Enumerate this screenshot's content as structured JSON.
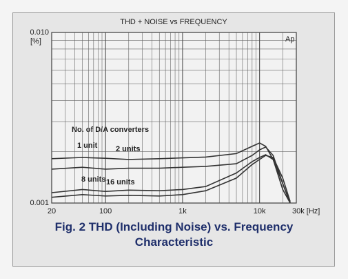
{
  "chart_data": {
    "type": "line",
    "title": "THD + NOISE vs FREQUENCY",
    "y_label": "[%]",
    "annotation": "Ap",
    "legend_title": "No. of D/A converters",
    "caption": "Fig. 2  THD (Including Noise) vs. Frequency Characteristic",
    "log_x": true,
    "log_y": true,
    "grid": true,
    "x": [
      20,
      50,
      100,
      200,
      500,
      1000,
      2000,
      5000,
      8000,
      10000,
      12000,
      15000,
      20000,
      25000
    ],
    "series": [
      {
        "name": "1 unit",
        "color": "#333333",
        "values": [
          0.00182,
          0.00185,
          0.00183,
          0.0018,
          0.00182,
          0.00184,
          0.00186,
          0.00195,
          0.00215,
          0.00225,
          0.00215,
          0.0018,
          0.0012,
          0.001
        ]
      },
      {
        "name": "2 units",
        "color": "#333333",
        "values": [
          0.00158,
          0.00162,
          0.00158,
          0.0016,
          0.0016,
          0.00162,
          0.00164,
          0.0017,
          0.0019,
          0.00205,
          0.00213,
          0.0019,
          0.0013,
          0.001
        ]
      },
      {
        "name": "8 units",
        "color": "#333333",
        "values": [
          0.00115,
          0.0012,
          0.00117,
          0.00119,
          0.00118,
          0.0012,
          0.00125,
          0.0015,
          0.00175,
          0.00185,
          0.00192,
          0.0018,
          0.0013,
          0.001
        ]
      },
      {
        "name": "16 units",
        "color": "#333333",
        "values": [
          0.00108,
          0.00112,
          0.0011,
          0.00111,
          0.0011,
          0.00112,
          0.00118,
          0.0014,
          0.00168,
          0.0018,
          0.0019,
          0.00185,
          0.0014,
          0.00102
        ]
      }
    ],
    "xlim": [
      20,
      30000
    ],
    "xticks": [
      20,
      100,
      {
        "value": 1000,
        "label": "1k"
      },
      {
        "value": 10000,
        "label": "10k"
      },
      {
        "value": 30000,
        "label": "30k [Hz]"
      }
    ],
    "ylim": [
      0.001,
      0.01
    ],
    "yticks": [
      0.001,
      {
        "value": 0.01,
        "label": "0.010"
      }
    ]
  }
}
